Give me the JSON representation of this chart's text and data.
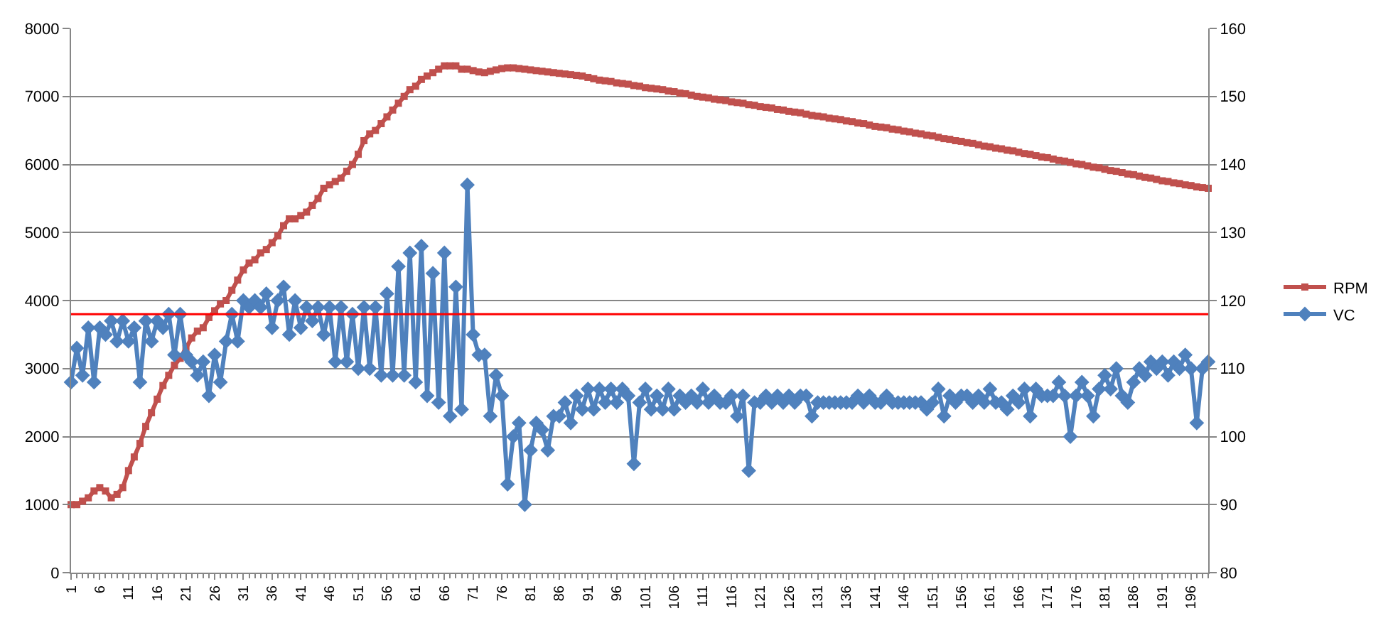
{
  "chart_data": {
    "type": "line",
    "categories": [
      "1",
      null,
      null,
      null,
      null,
      "6",
      null,
      null,
      null,
      null,
      "11",
      null,
      null,
      null,
      null,
      "16",
      null,
      null,
      null,
      null,
      "21",
      null,
      null,
      null,
      null,
      "26",
      null,
      null,
      null,
      null,
      "31",
      null,
      null,
      null,
      null,
      "36",
      null,
      null,
      null,
      null,
      "41",
      null,
      null,
      null,
      null,
      "46",
      null,
      null,
      null,
      null,
      "51",
      null,
      null,
      null,
      null,
      "56",
      null,
      null,
      null,
      null,
      "61",
      null,
      null,
      null,
      null,
      "66",
      null,
      null,
      null,
      null,
      "71",
      null,
      null,
      null,
      null,
      "76",
      null,
      null,
      null,
      null,
      "81",
      null,
      null,
      null,
      null,
      "86",
      null,
      null,
      null,
      null,
      "91",
      null,
      null,
      null,
      null,
      "96",
      null,
      null,
      null,
      null,
      "101",
      null,
      null,
      null,
      null,
      "106",
      null,
      null,
      null,
      null,
      "111",
      null,
      null,
      null,
      null,
      "116",
      null,
      null,
      null,
      null,
      "121",
      null,
      null,
      null,
      null,
      "126",
      null,
      null,
      null,
      null,
      "131",
      null,
      null,
      null,
      null,
      "136",
      null,
      null,
      null,
      null,
      "141",
      null,
      null,
      null,
      null,
      "146",
      null,
      null,
      null,
      null,
      "151",
      null,
      null,
      null,
      null,
      "156",
      null,
      null,
      null,
      null,
      "161",
      null,
      null,
      null,
      null,
      "166",
      null,
      null,
      null,
      null,
      "171",
      null,
      null,
      null,
      null,
      "176",
      null,
      null,
      null,
      null,
      "181",
      null,
      null,
      null,
      null,
      "186",
      null,
      null,
      null,
      null,
      "191",
      null,
      null,
      null,
      null,
      "196",
      null,
      null,
      null
    ],
    "series": [
      {
        "name": "RPM",
        "color": "#c0504d",
        "marker": "square",
        "values": [
          1000,
          1000,
          1050,
          1100,
          1200,
          1250,
          1200,
          1100,
          1150,
          1250,
          1500,
          1700,
          1900,
          2150,
          2350,
          2550,
          2750,
          2900,
          3050,
          3150,
          3300,
          3450,
          3550,
          3600,
          3750,
          3850,
          3950,
          4000,
          4150,
          4300,
          4450,
          4550,
          4600,
          4700,
          4750,
          4850,
          4950,
          5100,
          5200,
          5200,
          5250,
          5300,
          5400,
          5500,
          5650,
          5700,
          5750,
          5800,
          5900,
          6000,
          6150,
          6350,
          6450,
          6500,
          6600,
          6700,
          6800,
          6900,
          7000,
          7100,
          7150,
          7250,
          7300,
          7350,
          7400,
          7450,
          7450,
          7450,
          7400,
          7400,
          7380,
          7360,
          7350,
          7370,
          7390,
          7410,
          7420,
          7420,
          7410,
          7400,
          7390,
          7380,
          7370,
          7360,
          7350,
          7340,
          7330,
          7320,
          7310,
          7300,
          7280,
          7260,
          7240,
          7230,
          7220,
          7200,
          7190,
          7180,
          7160,
          7150,
          7130,
          7120,
          7110,
          7100,
          7080,
          7070,
          7050,
          7040,
          7020,
          7000,
          6990,
          6980,
          6960,
          6950,
          6940,
          6920,
          6910,
          6900,
          6880,
          6870,
          6850,
          6840,
          6830,
          6810,
          6800,
          6780,
          6770,
          6760,
          6740,
          6720,
          6710,
          6700,
          6680,
          6670,
          6660,
          6640,
          6630,
          6610,
          6600,
          6580,
          6560,
          6550,
          6540,
          6520,
          6510,
          6490,
          6480,
          6460,
          6450,
          6430,
          6420,
          6400,
          6380,
          6370,
          6350,
          6340,
          6320,
          6310,
          6290,
          6270,
          6260,
          6240,
          6230,
          6210,
          6200,
          6180,
          6160,
          6150,
          6130,
          6110,
          6100,
          6080,
          6060,
          6050,
          6030,
          6010,
          6000,
          5980,
          5960,
          5950,
          5930,
          5910,
          5900,
          5880,
          5860,
          5850,
          5830,
          5810,
          5800,
          5780,
          5760,
          5750,
          5730,
          5720,
          5700,
          5690,
          5670,
          5660,
          5650
        ]
      },
      {
        "name": "VC",
        "color": "#4f81bd",
        "marker": "diamond",
        "axis": "y2",
        "values": [
          108,
          113,
          109,
          116,
          108,
          116,
          115,
          117,
          114,
          117,
          114,
          116,
          108,
          117,
          114,
          117,
          116,
          118,
          112,
          118,
          112,
          111,
          109,
          111,
          106,
          112,
          108,
          114,
          118,
          114,
          120,
          119,
          120,
          119,
          121,
          116,
          120,
          122,
          115,
          120,
          116,
          119,
          117,
          119,
          115,
          119,
          111,
          119,
          111,
          118,
          110,
          119,
          110,
          119,
          109,
          121,
          109,
          125,
          109,
          127,
          108,
          128,
          106,
          124,
          105,
          127,
          103,
          122,
          104,
          137,
          115,
          112,
          112,
          103,
          109,
          106,
          93,
          100,
          102,
          90,
          98,
          102,
          101,
          98,
          103,
          103,
          105,
          102,
          106,
          104,
          107,
          104,
          107,
          105,
          107,
          105,
          107,
          106,
          96,
          105,
          107,
          104,
          106,
          104,
          107,
          104,
          106,
          105,
          106,
          105,
          107,
          105,
          106,
          105,
          105,
          106,
          103,
          106,
          95,
          105,
          105,
          106,
          105,
          106,
          105,
          106,
          105,
          106,
          106,
          103,
          105,
          105,
          105,
          105,
          105,
          105,
          105,
          106,
          105,
          106,
          105,
          105,
          106,
          105,
          105,
          105,
          105,
          105,
          105,
          104,
          105,
          107,
          103,
          106,
          105,
          106,
          106,
          105,
          106,
          105,
          107,
          105,
          105,
          104,
          106,
          105,
          107,
          103,
          107,
          106,
          106,
          106,
          108,
          106,
          100,
          106,
          108,
          106,
          103,
          107,
          109,
          107,
          110,
          106,
          105,
          108,
          110,
          109,
          111,
          110,
          111,
          109,
          111,
          110,
          112,
          110,
          102,
          110,
          111
        ]
      }
    ],
    "ylim": [
      0,
      8000
    ],
    "yticks": [
      0,
      1000,
      2000,
      3000,
      4000,
      5000,
      6000,
      7000,
      8000
    ],
    "y2lim": [
      80,
      160
    ],
    "y2ticks": [
      80,
      90,
      100,
      110,
      120,
      130,
      140,
      150,
      160
    ],
    "ref_lines": [
      {
        "axis": "y2",
        "value": 118,
        "color": "#ff0000"
      }
    ],
    "grid": "y",
    "legend": "right"
  }
}
